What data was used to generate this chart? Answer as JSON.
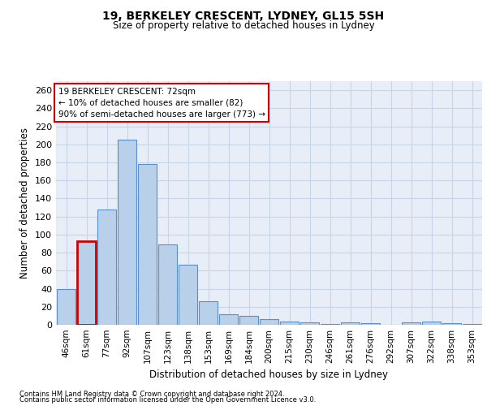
{
  "title1": "19, BERKELEY CRESCENT, LYDNEY, GL15 5SH",
  "title2": "Size of property relative to detached houses in Lydney",
  "xlabel": "Distribution of detached houses by size in Lydney",
  "ylabel": "Number of detached properties",
  "categories": [
    "46sqm",
    "61sqm",
    "77sqm",
    "92sqm",
    "107sqm",
    "123sqm",
    "138sqm",
    "153sqm",
    "169sqm",
    "184sqm",
    "200sqm",
    "215sqm",
    "230sqm",
    "246sqm",
    "261sqm",
    "276sqm",
    "292sqm",
    "307sqm",
    "322sqm",
    "338sqm",
    "353sqm"
  ],
  "values": [
    40,
    93,
    128,
    205,
    178,
    89,
    67,
    26,
    12,
    10,
    6,
    4,
    3,
    1,
    3,
    2,
    0,
    3,
    4,
    2,
    1
  ],
  "bar_color": "#b8d0ea",
  "bar_edge_color": "#5b8fcc",
  "highlight_bar_index": 1,
  "highlight_bar_edge_color": "#cc0000",
  "annotation_box_text": "19 BERKELEY CRESCENT: 72sqm\n← 10% of detached houses are smaller (82)\n90% of semi-detached houses are larger (773) →",
  "annotation_box_color": "#ffffff",
  "annotation_box_edge_color": "#cc0000",
  "ylim": [
    0,
    270
  ],
  "yticks": [
    0,
    20,
    40,
    60,
    80,
    100,
    120,
    140,
    160,
    180,
    200,
    220,
    240,
    260
  ],
  "grid_color": "#c8d4e8",
  "background_color": "#e8eef8",
  "footer1": "Contains HM Land Registry data © Crown copyright and database right 2024.",
  "footer2": "Contains public sector information licensed under the Open Government Licence v3.0."
}
